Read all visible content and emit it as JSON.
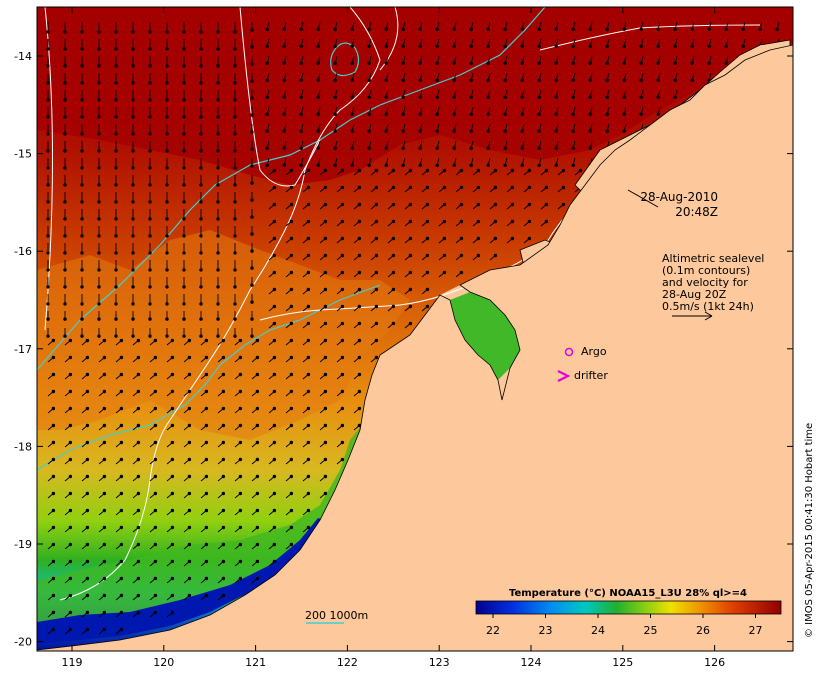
{
  "map": {
    "lon_ticks": [
      "119",
      "120",
      "121",
      "122",
      "123",
      "124",
      "125",
      "126"
    ],
    "lat_ticks": [
      "-14",
      "-15",
      "-16",
      "-17",
      "-18",
      "-19",
      "-20"
    ],
    "timestamp": {
      "date": "28-Aug-2010",
      "time": "20:48Z"
    },
    "altimetry_note": [
      "Altimetric sealevel",
      "(0.1m contours)",
      "and velocity for",
      "28-Aug 20Z",
      "0.5m/s (1kt 24h)"
    ],
    "legend_argo": "Argo",
    "legend_drifter": "drifter",
    "depth_legend": "200  1000m",
    "colorbar": {
      "title": "Temperature (°C) NOAA15_L3U 28% ql>=4",
      "ticks": [
        "22",
        "23",
        "24",
        "25",
        "26",
        "27"
      ]
    },
    "credit": "© IMOS 05-Apr-2015 00:41:30 Hobart time",
    "colors": {
      "land": "#fcc89c",
      "sst_warm": "#a80000",
      "sst_orange": "#e07010",
      "sst_green": "#40b000",
      "sst_cold": "#0010a0",
      "isobath_200": "#40d0d0",
      "contour": "#ffffff",
      "argo": "#e000e0"
    }
  }
}
